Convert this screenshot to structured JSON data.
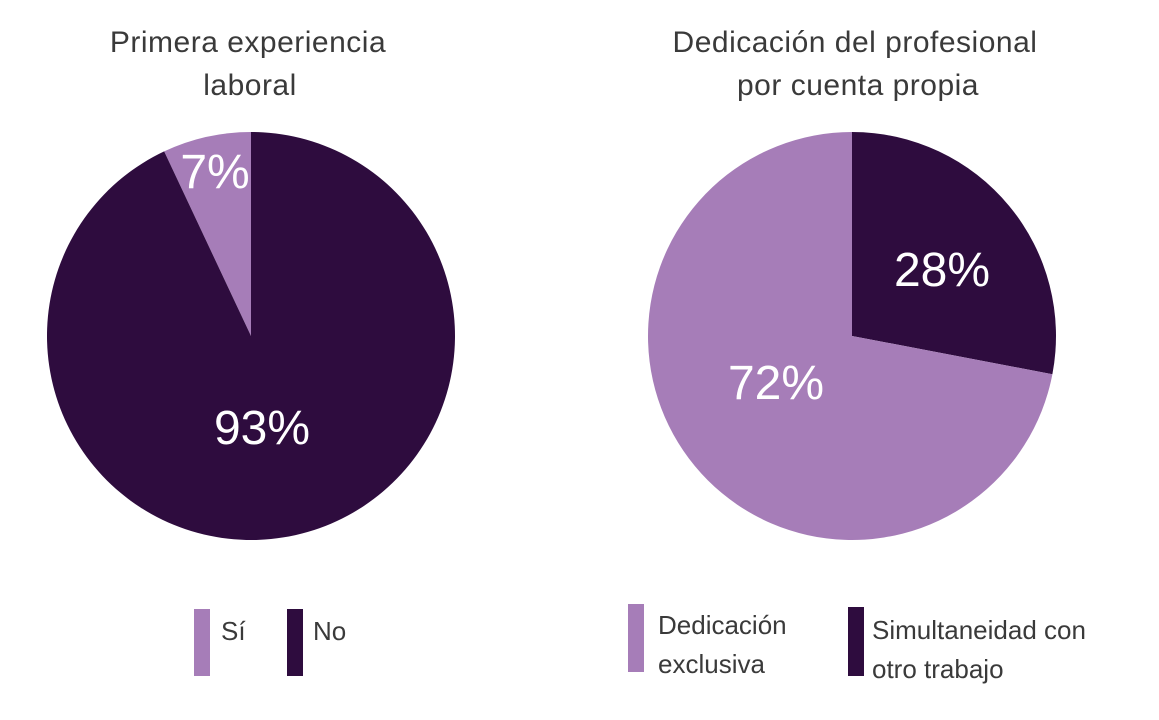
{
  "chart_data": [
    {
      "type": "pie",
      "title": [
        "Primera experiencia",
        "laboral"
      ],
      "slices": [
        {
          "label": "Sí",
          "value": 7,
          "display": "7%",
          "color": "#a67db8"
        },
        {
          "label": "No",
          "value": 93,
          "display": "93%",
          "color": "#2e0c3e"
        }
      ],
      "legend": [
        "Sí",
        "No"
      ],
      "legend_placement": "bottom"
    },
    {
      "type": "pie",
      "title": [
        "Dedicación del profesional",
        "por cuenta propia"
      ],
      "slices": [
        {
          "label": "Simultaneidad con otro trabajo",
          "value": 28,
          "display": "28%",
          "color": "#2e0c3e"
        },
        {
          "label": "Dedicación exclusiva",
          "value": 72,
          "display": "72%",
          "color": "#a67db8"
        }
      ],
      "legend": [
        [
          "Dedicación",
          "exclusiva"
        ],
        [
          "Simultaneidad con",
          "otro trabajo"
        ]
      ],
      "legend_placement": "bottom"
    }
  ]
}
